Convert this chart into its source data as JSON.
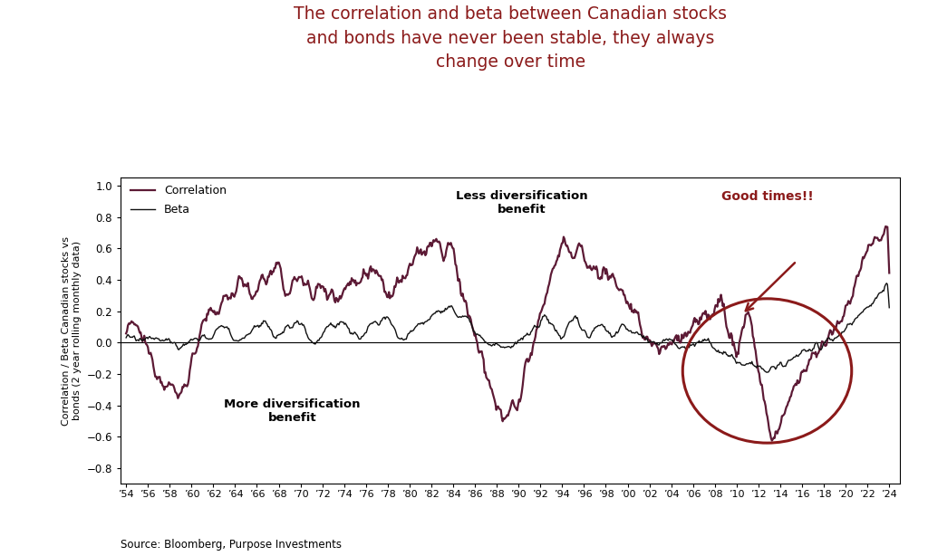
{
  "title": "The correlation and beta between Canadian stocks\nand bonds have never been stable, they always\nchange over time",
  "title_color": "#8B1A1A",
  "ylabel": "Correlation / Beta Canadian stocks vs\nbonds (2 year rolling monthly data)",
  "source_text": "Source: Bloomberg, Purpose Investments",
  "legend_correlation": "Correlation",
  "legend_beta": "Beta",
  "correlation_color": "#5C1A35",
  "beta_color": "#111111",
  "annotation_less": "Less diversification\nbenefit",
  "annotation_more": "More diversification\nbenefit",
  "annotation_good": "Good times!!",
  "good_times_color": "#8B1A1A",
  "circle_color": "#8B1A1A",
  "arrow_color": "#8B1A1A",
  "ylim": [
    -0.9,
    1.05
  ],
  "yticks": [
    -0.8,
    -0.6,
    -0.4,
    -0.2,
    0.0,
    0.2,
    0.4,
    0.6,
    0.8,
    1.0
  ],
  "background_color": "#ffffff"
}
